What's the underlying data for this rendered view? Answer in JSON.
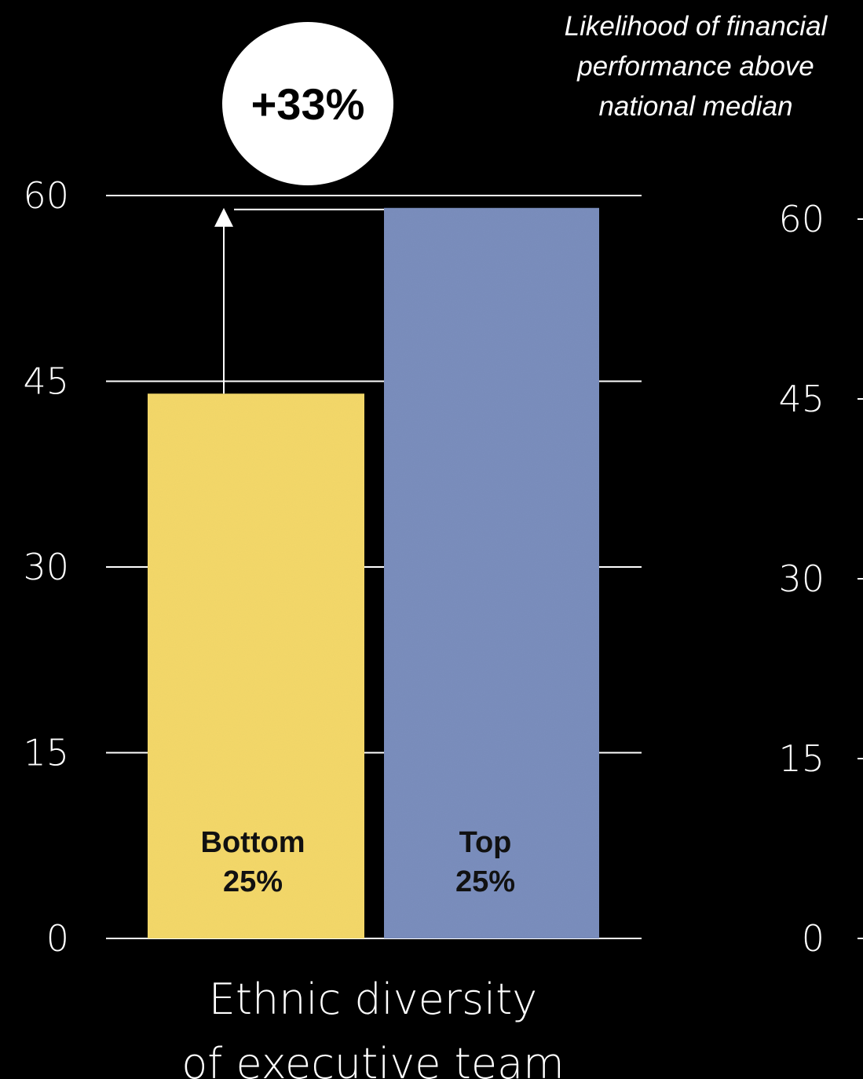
{
  "chart_data": [
    {
      "type": "bar",
      "title": "",
      "xlabel": "Ethnic diversity of executive team",
      "xlabel_lines": [
        "Ethnic diversity",
        "of executive team"
      ],
      "ylabel": "",
      "ylim": [
        0,
        60
      ],
      "yticks": [
        "0",
        "15",
        "30",
        "45",
        "60"
      ],
      "grid": true,
      "categories": [
        "Bottom 25%",
        "Top 25%"
      ],
      "category_lines": [
        [
          "Bottom",
          "25%"
        ],
        [
          "Top",
          "25%"
        ]
      ],
      "values": [
        44,
        59
      ],
      "bar_colors": [
        "#f5d96a",
        "#7b8fbe"
      ],
      "annotation_badge": "+33%",
      "annotation_title_lines": [
        "Likelihood of financial",
        "performance above",
        "national median"
      ]
    },
    {
      "type": "bar",
      "partial": true,
      "ylim": [
        0,
        60
      ],
      "yticks": [
        "0",
        "15",
        "30",
        "45",
        "60"
      ]
    }
  ],
  "colors": {
    "background": "#000000",
    "foreground": "#ffffff",
    "bottom_bar": "#f5d96a",
    "top_bar": "#7b8fbe"
  }
}
